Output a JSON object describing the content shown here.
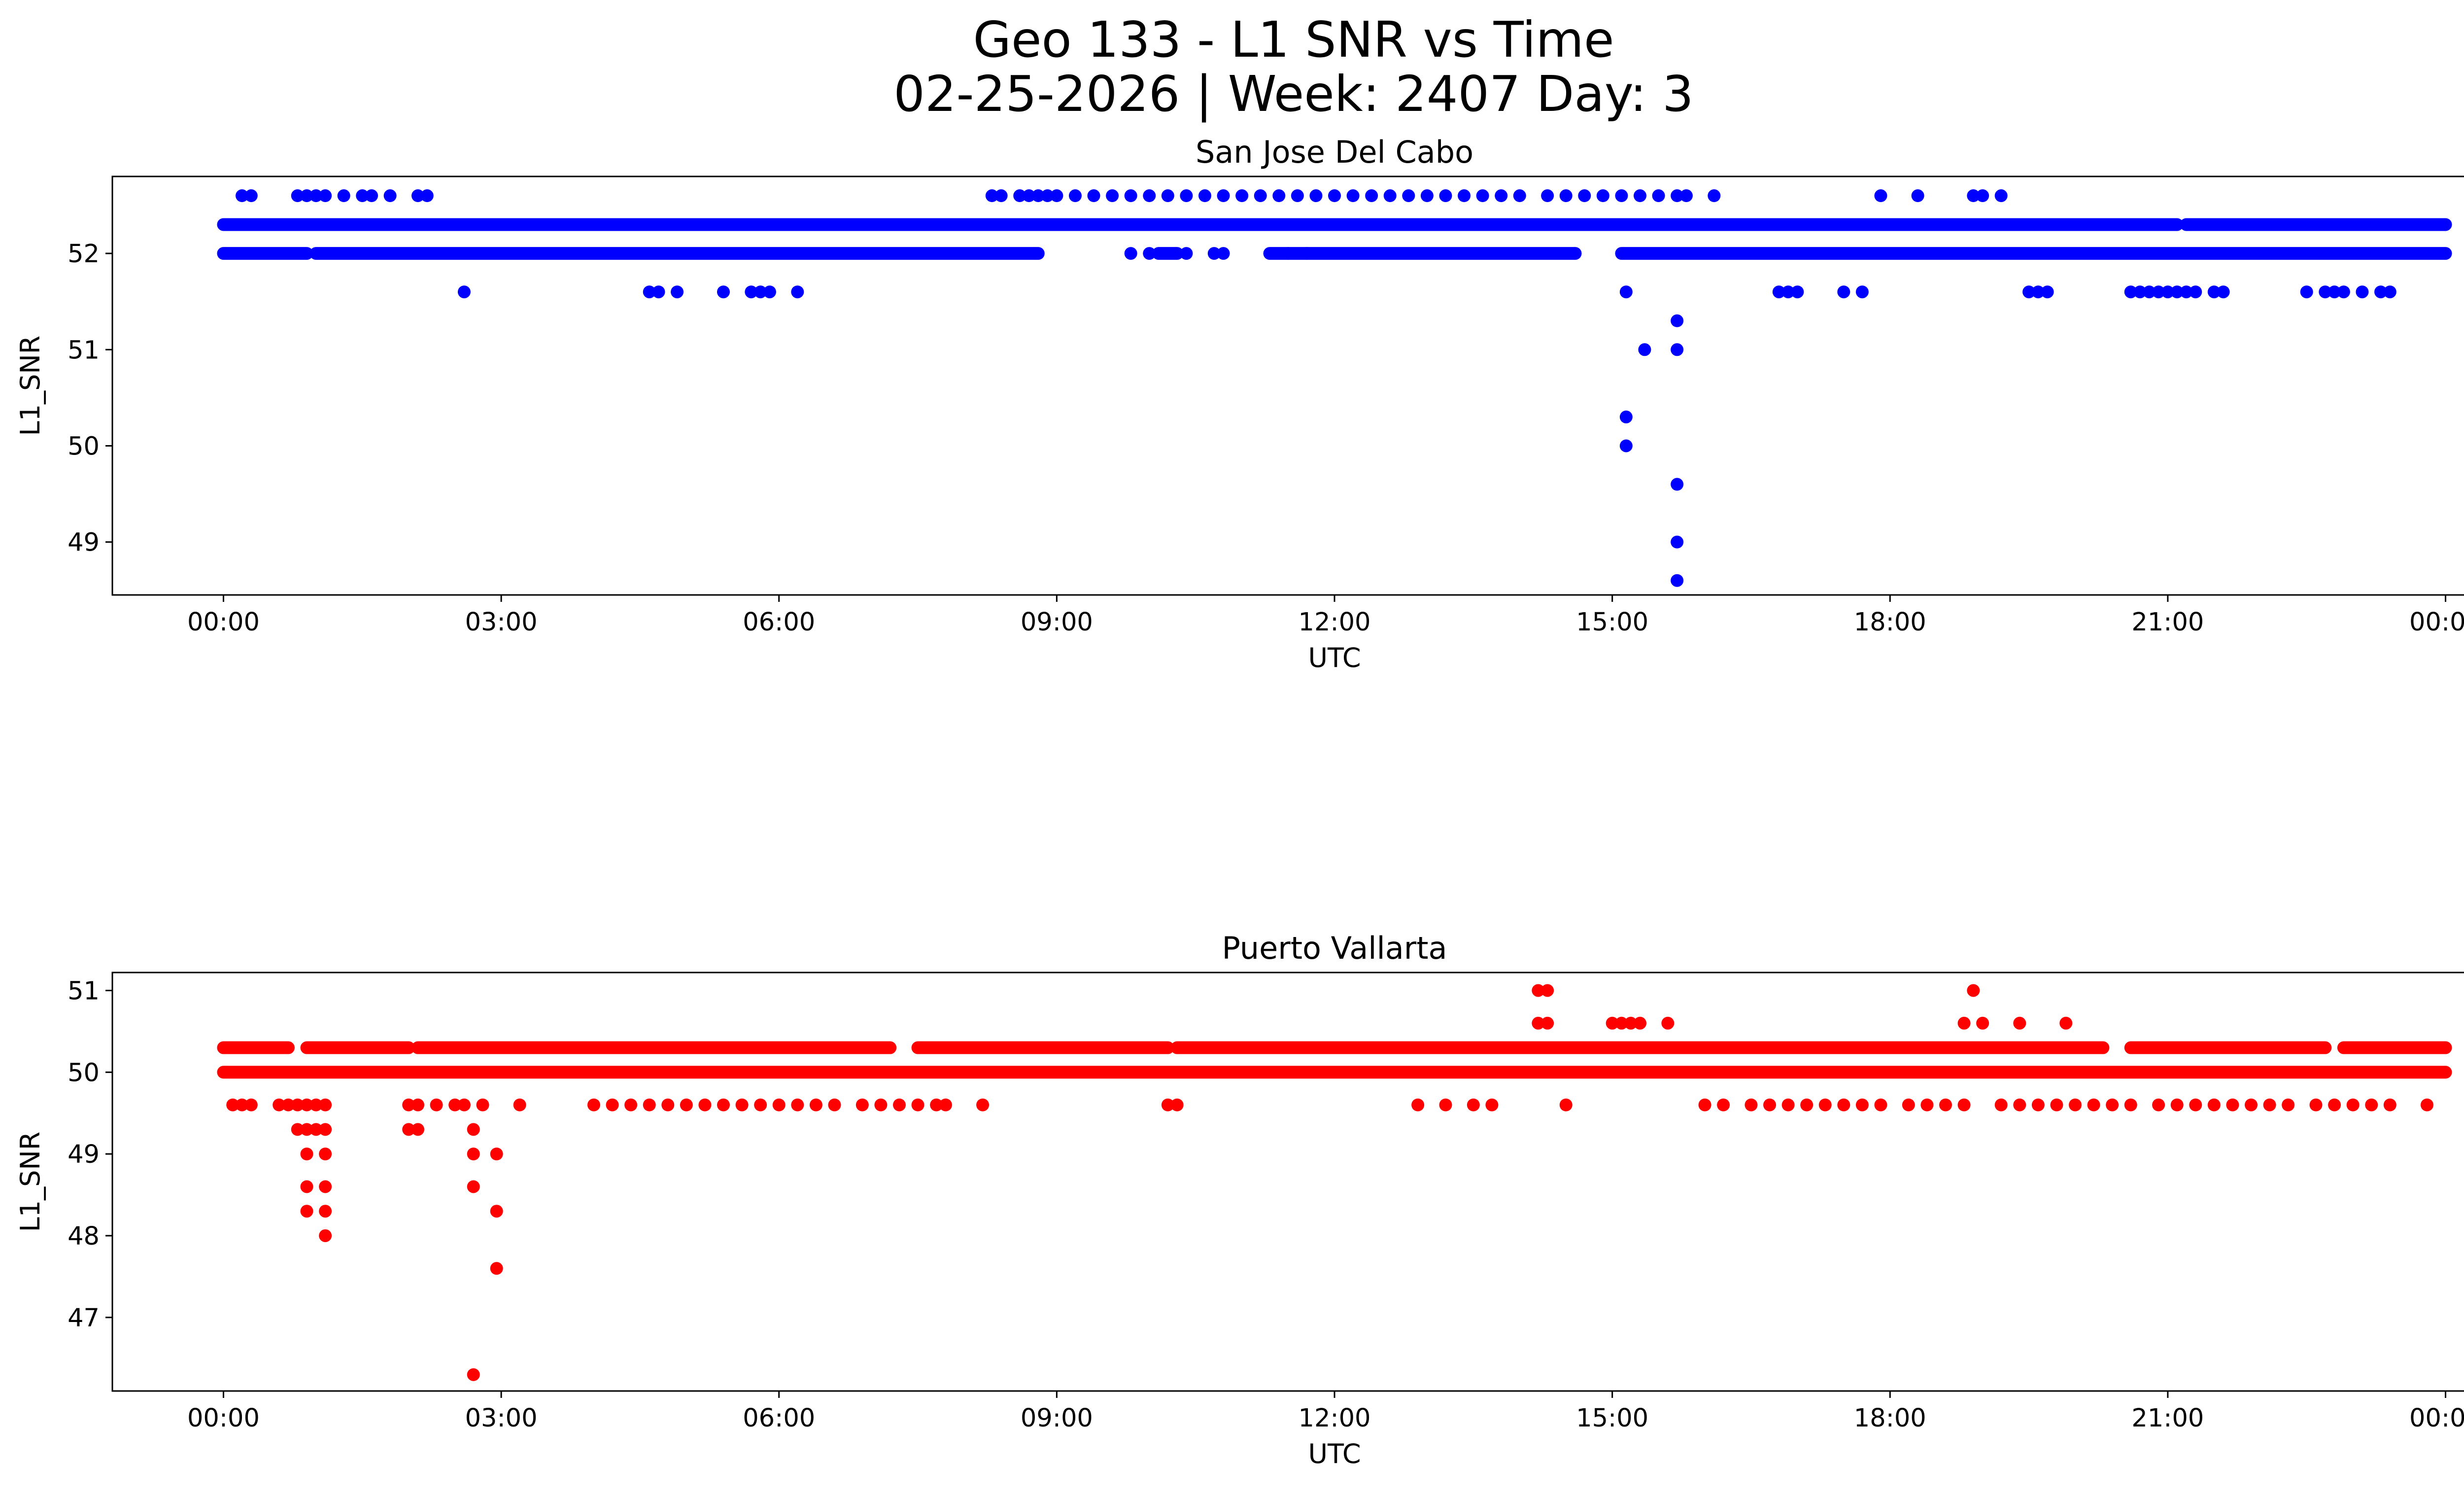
{
  "figure": {
    "title_line1": "Geo 133 - L1 SNR vs Time",
    "title_line2": "02-25-2026 | Week: 2407 Day: 3"
  },
  "chart_data": [
    {
      "type": "scatter",
      "title": "San Jose Del Cabo",
      "xlabel": "UTC",
      "ylabel": "L1_SNR",
      "color": "#0000ff",
      "xlim": [
        -1.2,
        25.2
      ],
      "ylim": [
        48.45,
        52.8
      ],
      "xticks": [
        0,
        3,
        6,
        9,
        12,
        15,
        18,
        21,
        24
      ],
      "xtick_labels": [
        "00:00",
        "03:00",
        "06:00",
        "09:00",
        "12:00",
        "15:00",
        "18:00",
        "21:00",
        "00:00"
      ],
      "yticks": [
        49,
        50,
        51,
        52
      ],
      "ytick_labels": [
        "49",
        "50",
        "51",
        "52"
      ],
      "bands": [
        {
          "y": 52.3,
          "ranges": [
            [
              0,
              21.1
            ],
            [
              21.2,
              24
            ]
          ]
        },
        {
          "y": 52.0,
          "ranges": [
            [
              0,
              0.9
            ],
            [
              1,
              8.8
            ],
            [
              10.1,
              10.3
            ],
            [
              11.3,
              14.6
            ],
            [
              15.1,
              24
            ]
          ]
        }
      ],
      "points": [
        [
          0.2,
          52.6
        ],
        [
          0.3,
          52.6
        ],
        [
          0.8,
          52.6
        ],
        [
          0.9,
          52.6
        ],
        [
          1.0,
          52.6
        ],
        [
          1.1,
          52.6
        ],
        [
          1.3,
          52.6
        ],
        [
          1.5,
          52.6
        ],
        [
          1.6,
          52.6
        ],
        [
          1.8,
          52.6
        ],
        [
          2.1,
          52.6
        ],
        [
          2.2,
          52.6
        ],
        [
          8.3,
          52.6
        ],
        [
          8.4,
          52.6
        ],
        [
          8.6,
          52.6
        ],
        [
          8.7,
          52.6
        ],
        [
          8.8,
          52.6
        ],
        [
          8.9,
          52.6
        ],
        [
          9.0,
          52.6
        ],
        [
          9.2,
          52.6
        ],
        [
          9.4,
          52.6
        ],
        [
          9.6,
          52.6
        ],
        [
          9.8,
          52.6
        ],
        [
          10.0,
          52.6
        ],
        [
          10.2,
          52.6
        ],
        [
          10.4,
          52.6
        ],
        [
          10.6,
          52.6
        ],
        [
          10.8,
          52.6
        ],
        [
          11.0,
          52.6
        ],
        [
          11.2,
          52.6
        ],
        [
          11.4,
          52.6
        ],
        [
          11.6,
          52.6
        ],
        [
          11.8,
          52.6
        ],
        [
          12.0,
          52.6
        ],
        [
          12.2,
          52.6
        ],
        [
          12.4,
          52.6
        ],
        [
          12.6,
          52.6
        ],
        [
          12.8,
          52.6
        ],
        [
          13.0,
          52.6
        ],
        [
          13.2,
          52.6
        ],
        [
          13.4,
          52.6
        ],
        [
          13.6,
          52.6
        ],
        [
          13.8,
          52.6
        ],
        [
          14.0,
          52.6
        ],
        [
          14.3,
          52.6
        ],
        [
          14.5,
          52.6
        ],
        [
          14.7,
          52.6
        ],
        [
          14.9,
          52.6
        ],
        [
          15.1,
          52.6
        ],
        [
          15.3,
          52.6
        ],
        [
          15.5,
          52.6
        ],
        [
          15.7,
          52.6
        ],
        [
          15.8,
          52.6
        ],
        [
          16.1,
          52.6
        ],
        [
          17.9,
          52.6
        ],
        [
          18.3,
          52.6
        ],
        [
          18.9,
          52.6
        ],
        [
          19.0,
          52.6
        ],
        [
          19.2,
          52.6
        ],
        [
          9.8,
          52.0
        ],
        [
          10.0,
          52.0
        ],
        [
          10.4,
          52.0
        ],
        [
          10.7,
          52.0
        ],
        [
          10.8,
          52.0
        ],
        [
          11.5,
          52.0
        ],
        [
          11.7,
          52.0
        ],
        [
          2.6,
          51.6
        ],
        [
          4.6,
          51.6
        ],
        [
          4.7,
          51.6
        ],
        [
          4.9,
          51.6
        ],
        [
          5.4,
          51.6
        ],
        [
          5.7,
          51.6
        ],
        [
          5.8,
          51.6
        ],
        [
          5.9,
          51.6
        ],
        [
          6.2,
          51.6
        ],
        [
          15.15,
          51.6
        ],
        [
          16.8,
          51.6
        ],
        [
          16.9,
          51.6
        ],
        [
          17.0,
          51.6
        ],
        [
          17.5,
          51.6
        ],
        [
          17.7,
          51.6
        ],
        [
          19.5,
          51.6
        ],
        [
          19.6,
          51.6
        ],
        [
          19.7,
          51.6
        ],
        [
          20.6,
          51.6
        ],
        [
          20.7,
          51.6
        ],
        [
          20.8,
          51.6
        ],
        [
          20.9,
          51.6
        ],
        [
          21.0,
          51.6
        ],
        [
          21.1,
          51.6
        ],
        [
          21.2,
          51.6
        ],
        [
          21.3,
          51.6
        ],
        [
          21.5,
          51.6
        ],
        [
          21.6,
          51.6
        ],
        [
          22.5,
          51.6
        ],
        [
          22.7,
          51.6
        ],
        [
          22.8,
          51.6
        ],
        [
          22.9,
          51.6
        ],
        [
          23.1,
          51.6
        ],
        [
          23.3,
          51.6
        ],
        [
          23.4,
          51.6
        ],
        [
          15.7,
          51.3
        ],
        [
          15.35,
          51.0
        ],
        [
          15.7,
          51.0
        ],
        [
          15.15,
          50.3
        ],
        [
          15.15,
          50.0
        ],
        [
          15.7,
          49.6
        ],
        [
          15.7,
          49.0
        ],
        [
          15.7,
          48.6
        ]
      ]
    },
    {
      "type": "scatter",
      "title": "Puerto Vallarta",
      "xlabel": "UTC",
      "ylabel": "L1_SNR",
      "color": "#ff0000",
      "xlim": [
        -1.2,
        25.2
      ],
      "ylim": [
        46.1,
        51.22
      ],
      "xticks": [
        0,
        3,
        6,
        9,
        12,
        15,
        18,
        21,
        24
      ],
      "xtick_labels": [
        "00:00",
        "03:00",
        "06:00",
        "09:00",
        "12:00",
        "15:00",
        "18:00",
        "21:00",
        "00:00"
      ],
      "yticks": [
        47,
        48,
        49,
        50,
        51
      ],
      "ytick_labels": [
        "47",
        "48",
        "49",
        "50",
        "51"
      ],
      "bands": [
        {
          "y": 50.3,
          "ranges": [
            [
              0,
              0.7
            ],
            [
              0.9,
              2.0
            ],
            [
              2.1,
              7.2
            ],
            [
              7.5,
              10.2
            ],
            [
              10.3,
              20.3
            ],
            [
              20.6,
              22.7
            ],
            [
              22.9,
              24
            ]
          ]
        },
        {
          "y": 50.0,
          "ranges": [
            [
              0,
              24
            ]
          ]
        }
      ],
      "points": [
        [
          0.1,
          49.6
        ],
        [
          0.2,
          49.6
        ],
        [
          0.3,
          49.6
        ],
        [
          0.6,
          49.6
        ],
        [
          0.7,
          49.6
        ],
        [
          0.8,
          49.6
        ],
        [
          0.9,
          49.6
        ],
        [
          1.0,
          49.6
        ],
        [
          1.1,
          49.6
        ],
        [
          0.8,
          49.3
        ],
        [
          0.9,
          49.3
        ],
        [
          1.0,
          49.3
        ],
        [
          1.1,
          49.3
        ],
        [
          0.9,
          49.0
        ],
        [
          1.1,
          49.0
        ],
        [
          0.9,
          48.6
        ],
        [
          1.1,
          48.6
        ],
        [
          0.9,
          48.3
        ],
        [
          1.1,
          48.3
        ],
        [
          1.1,
          48.0
        ],
        [
          2.0,
          49.6
        ],
        [
          2.1,
          49.6
        ],
        [
          2.0,
          49.3
        ],
        [
          2.1,
          49.3
        ],
        [
          2.3,
          49.6
        ],
        [
          2.5,
          49.6
        ],
        [
          2.6,
          49.6
        ],
        [
          2.8,
          49.6
        ],
        [
          3.2,
          49.6
        ],
        [
          2.7,
          49.3
        ],
        [
          2.7,
          49.0
        ],
        [
          2.95,
          49.0
        ],
        [
          2.7,
          48.6
        ],
        [
          2.95,
          48.3
        ],
        [
          2.95,
          47.6
        ],
        [
          2.7,
          46.3
        ],
        [
          4.0,
          49.6
        ],
        [
          4.2,
          49.6
        ],
        [
          4.4,
          49.6
        ],
        [
          4.6,
          49.6
        ],
        [
          4.8,
          49.6
        ],
        [
          5.0,
          49.6
        ],
        [
          5.2,
          49.6
        ],
        [
          5.4,
          49.6
        ],
        [
          5.6,
          49.6
        ],
        [
          5.8,
          49.6
        ],
        [
          6.0,
          49.6
        ],
        [
          6.2,
          49.6
        ],
        [
          6.4,
          49.6
        ],
        [
          6.6,
          49.6
        ],
        [
          6.9,
          49.6
        ],
        [
          7.1,
          49.6
        ],
        [
          7.3,
          49.6
        ],
        [
          7.5,
          49.6
        ],
        [
          7.7,
          49.6
        ],
        [
          7.8,
          49.6
        ],
        [
          8.2,
          49.6
        ],
        [
          10.2,
          49.6
        ],
        [
          10.3,
          49.6
        ],
        [
          12.9,
          49.6
        ],
        [
          13.2,
          49.6
        ],
        [
          13.5,
          49.6
        ],
        [
          13.7,
          49.6
        ],
        [
          14.2,
          51.0
        ],
        [
          14.3,
          51.0
        ],
        [
          14.2,
          50.6
        ],
        [
          14.3,
          50.6
        ],
        [
          15.0,
          50.6
        ],
        [
          15.1,
          50.6
        ],
        [
          15.2,
          50.6
        ],
        [
          15.3,
          50.6
        ],
        [
          15.6,
          50.6
        ],
        [
          14.5,
          49.6
        ],
        [
          16.0,
          49.6
        ],
        [
          16.2,
          49.6
        ],
        [
          16.5,
          49.6
        ],
        [
          16.7,
          49.6
        ],
        [
          16.9,
          49.6
        ],
        [
          17.1,
          49.6
        ],
        [
          17.3,
          49.6
        ],
        [
          17.5,
          49.6
        ],
        [
          17.7,
          49.6
        ],
        [
          17.9,
          49.6
        ],
        [
          18.2,
          49.6
        ],
        [
          18.4,
          49.6
        ],
        [
          18.6,
          49.6
        ],
        [
          18.8,
          49.6
        ],
        [
          18.8,
          50.6
        ],
        [
          18.9,
          51.0
        ],
        [
          19.0,
          50.6
        ],
        [
          19.4,
          50.6
        ],
        [
          19.9,
          50.6
        ],
        [
          19.2,
          49.6
        ],
        [
          19.4,
          49.6
        ],
        [
          19.6,
          49.6
        ],
        [
          19.8,
          49.6
        ],
        [
          20.0,
          49.6
        ],
        [
          20.2,
          49.6
        ],
        [
          20.4,
          49.6
        ],
        [
          20.6,
          49.6
        ],
        [
          20.9,
          49.6
        ],
        [
          21.1,
          49.6
        ],
        [
          21.3,
          49.6
        ],
        [
          21.5,
          49.6
        ],
        [
          21.7,
          49.6
        ],
        [
          21.9,
          49.6
        ],
        [
          22.1,
          49.6
        ],
        [
          22.3,
          49.6
        ],
        [
          22.6,
          49.6
        ],
        [
          22.8,
          49.6
        ],
        [
          23.0,
          49.6
        ],
        [
          23.2,
          49.6
        ],
        [
          23.4,
          49.6
        ],
        [
          23.8,
          49.6
        ]
      ]
    }
  ]
}
